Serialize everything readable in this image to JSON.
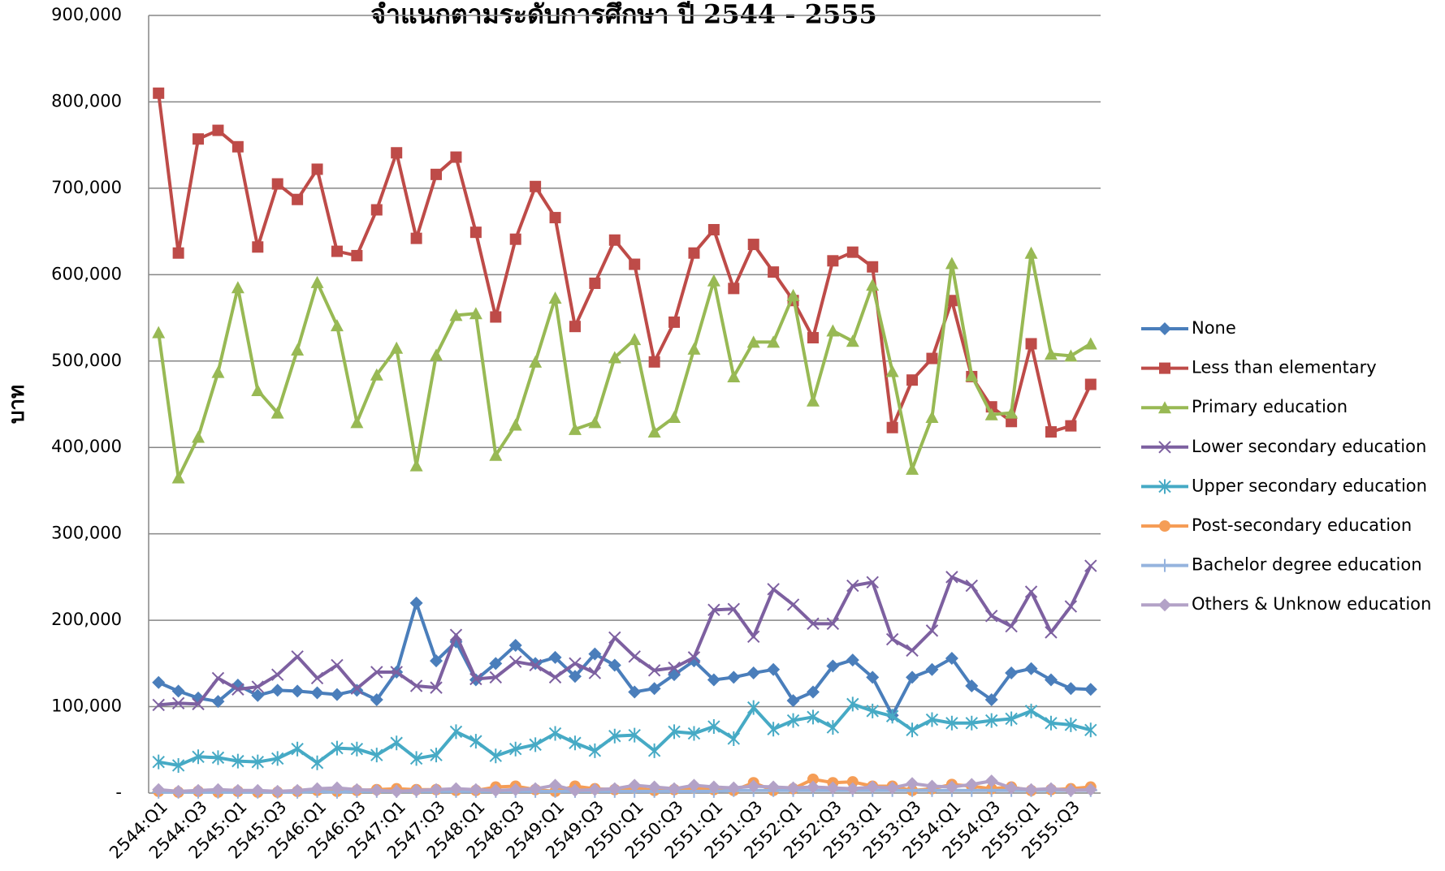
{
  "chart_data": {
    "type": "line",
    "title": "จำแนกตามระดับการศึกษา ปี 2544 - 2555",
    "y_label": "บาท",
    "categories": [
      "2544:Q1",
      null,
      "2544:Q3",
      null,
      "2545:Q1",
      null,
      "2545:Q3",
      null,
      "2546:Q1",
      null,
      "2546:Q3",
      null,
      "2547:Q1",
      null,
      "2547:Q3",
      null,
      "2548:Q1",
      null,
      "2548:Q3",
      null,
      "2549:Q1",
      null,
      "2549:Q3",
      null,
      "2550:Q1",
      null,
      "2550:Q3",
      null,
      "2551:Q1",
      null,
      "2551:Q3",
      null,
      "2552:Q1",
      null,
      "2552:Q3",
      null,
      "2553:Q1",
      null,
      "2553:Q3",
      null,
      "2554:Q1",
      null,
      "2554:Q3",
      null,
      "2555:Q1",
      null,
      "2555:Q3",
      null
    ],
    "ylim": [
      0,
      900000
    ],
    "yticks": [
      {
        "value": 0,
        "label": "-"
      },
      {
        "value": 100000,
        "label": "100,000"
      },
      {
        "value": 200000,
        "label": "200,000"
      },
      {
        "value": 300000,
        "label": "300,000"
      },
      {
        "value": 400000,
        "label": "400,000"
      },
      {
        "value": 500000,
        "label": "500,000"
      },
      {
        "value": 600000,
        "label": "600,000"
      },
      {
        "value": 700000,
        "label": "700,000"
      },
      {
        "value": 800000,
        "label": "800,000"
      },
      {
        "value": 900000,
        "label": "900,000"
      }
    ],
    "grid": true,
    "legend": "right",
    "series": [
      {
        "name": "None",
        "color": "#4a7ebb",
        "marker": "diamond",
        "values": [
          128000,
          118000,
          110000,
          106000,
          125000,
          113000,
          119000,
          118000,
          116000,
          114000,
          119000,
          108000,
          140000,
          220000,
          153000,
          175000,
          131000,
          150000,
          171000,
          150000,
          157000,
          135000,
          161000,
          148000,
          117000,
          121000,
          137000,
          153000,
          131000,
          134000,
          139000,
          143000,
          107000,
          117000,
          147000,
          154000,
          134000,
          90000,
          134000,
          143000,
          156000,
          124000,
          108000,
          139000,
          144000,
          131000,
          121000,
          120000
        ]
      },
      {
        "name": "Less than elementary",
        "color": "#be4b48",
        "marker": "square",
        "values": [
          810000,
          625000,
          757000,
          767000,
          748000,
          632000,
          705000,
          687000,
          722000,
          627000,
          622000,
          675000,
          741000,
          642000,
          716000,
          736000,
          649000,
          551000,
          641000,
          702000,
          666000,
          540000,
          590000,
          640000,
          612000,
          499000,
          545000,
          625000,
          652000,
          584000,
          635000,
          603000,
          570000,
          527000,
          616000,
          626000,
          609000,
          423000,
          478000,
          503000,
          570000,
          482000,
          447000,
          430000,
          520000,
          418000,
          425000,
          473000
        ]
      },
      {
        "name": "Primary education",
        "color": "#98b954",
        "marker": "triangle",
        "values": [
          533000,
          365000,
          412000,
          487000,
          585000,
          466000,
          440000,
          513000,
          591000,
          541000,
          429000,
          484000,
          515000,
          379000,
          507000,
          553000,
          555000,
          391000,
          426000,
          499000,
          573000,
          421000,
          429000,
          504000,
          525000,
          418000,
          435000,
          514000,
          593000,
          482000,
          522000,
          522000,
          576000,
          454000,
          535000,
          523000,
          588000,
          488000,
          375000,
          435000,
          613000,
          483000,
          438000,
          440000,
          625000,
          508000,
          506000,
          520000
        ]
      },
      {
        "name": "Lower secondary education",
        "color": "#7d60a0",
        "marker": "x",
        "values": [
          102000,
          104000,
          103000,
          133000,
          120000,
          123000,
          137000,
          158000,
          133000,
          148000,
          121000,
          140000,
          140000,
          124000,
          122000,
          183000,
          132000,
          134000,
          152000,
          148000,
          134000,
          150000,
          139000,
          180000,
          158000,
          142000,
          145000,
          157000,
          212000,
          213000,
          181000,
          236000,
          218000,
          196000,
          196000,
          240000,
          244000,
          178000,
          165000,
          188000,
          250000,
          240000,
          205000,
          193000,
          233000,
          186000,
          216000,
          263000
        ]
      },
      {
        "name": "Upper secondary education",
        "color": "#46aac5",
        "marker": "star",
        "values": [
          36000,
          32000,
          42000,
          41000,
          37000,
          36000,
          40000,
          51000,
          35000,
          52000,
          51000,
          44000,
          58000,
          40000,
          44000,
          71000,
          60000,
          43000,
          51000,
          56000,
          69000,
          58000,
          49000,
          66000,
          67000,
          49000,
          71000,
          69000,
          77000,
          63000,
          99000,
          74000,
          84000,
          88000,
          76000,
          103000,
          95000,
          89000,
          73000,
          85000,
          81000,
          81000,
          84000,
          86000,
          95000,
          81000,
          79000,
          73000
        ]
      },
      {
        "name": "Post-secondary education",
        "color": "#f59d56",
        "marker": "circle",
        "values": [
          2000,
          1000,
          2000,
          1000,
          2000,
          1000,
          1000,
          2000,
          3000,
          2000,
          3000,
          4000,
          5000,
          4000,
          4000,
          3000,
          3000,
          7000,
          8000,
          4000,
          2000,
          8000,
          5000,
          4000,
          6000,
          3000,
          4000,
          6000,
          4000,
          3000,
          12000,
          3000,
          5000,
          16000,
          12000,
          13000,
          8000,
          8000,
          3000,
          5000,
          10000,
          8000,
          5000,
          7000,
          3000,
          4000,
          5000,
          7000
        ]
      },
      {
        "name": "Bachelor degree education",
        "color": "#95b3de",
        "marker": "plus",
        "values": [
          1000,
          1000,
          1000,
          1000,
          1000,
          1000,
          1000,
          1000,
          2000,
          1000,
          2000,
          2000,
          2000,
          2000,
          2000,
          2000,
          2000,
          2000,
          2000,
          2000,
          2000,
          2000,
          2000,
          2000,
          2000,
          2000,
          2000,
          2000,
          2000,
          3000,
          3000,
          3000,
          3000,
          3000,
          3000,
          3000,
          3000,
          3000,
          3000,
          3000,
          3000,
          3000,
          3000,
          3000,
          3000,
          3000,
          3000,
          3000
        ]
      },
      {
        "name": "Others & Unknow education",
        "color": "#b3a2c7",
        "marker": "diamond",
        "values": [
          4000,
          2000,
          3000,
          4000,
          3000,
          3000,
          2000,
          3000,
          5000,
          6000,
          4000,
          3000,
          2000,
          3000,
          4000,
          5000,
          4000,
          3000,
          4000,
          5000,
          9000,
          3000,
          4000,
          5000,
          9000,
          7000,
          5000,
          9000,
          7000,
          6000,
          8000,
          7000,
          6000,
          7000,
          6000,
          5000,
          7000,
          6000,
          11000,
          8000,
          7000,
          10000,
          14000,
          6000,
          4000,
          5000,
          3000,
          4000
        ]
      }
    ]
  }
}
